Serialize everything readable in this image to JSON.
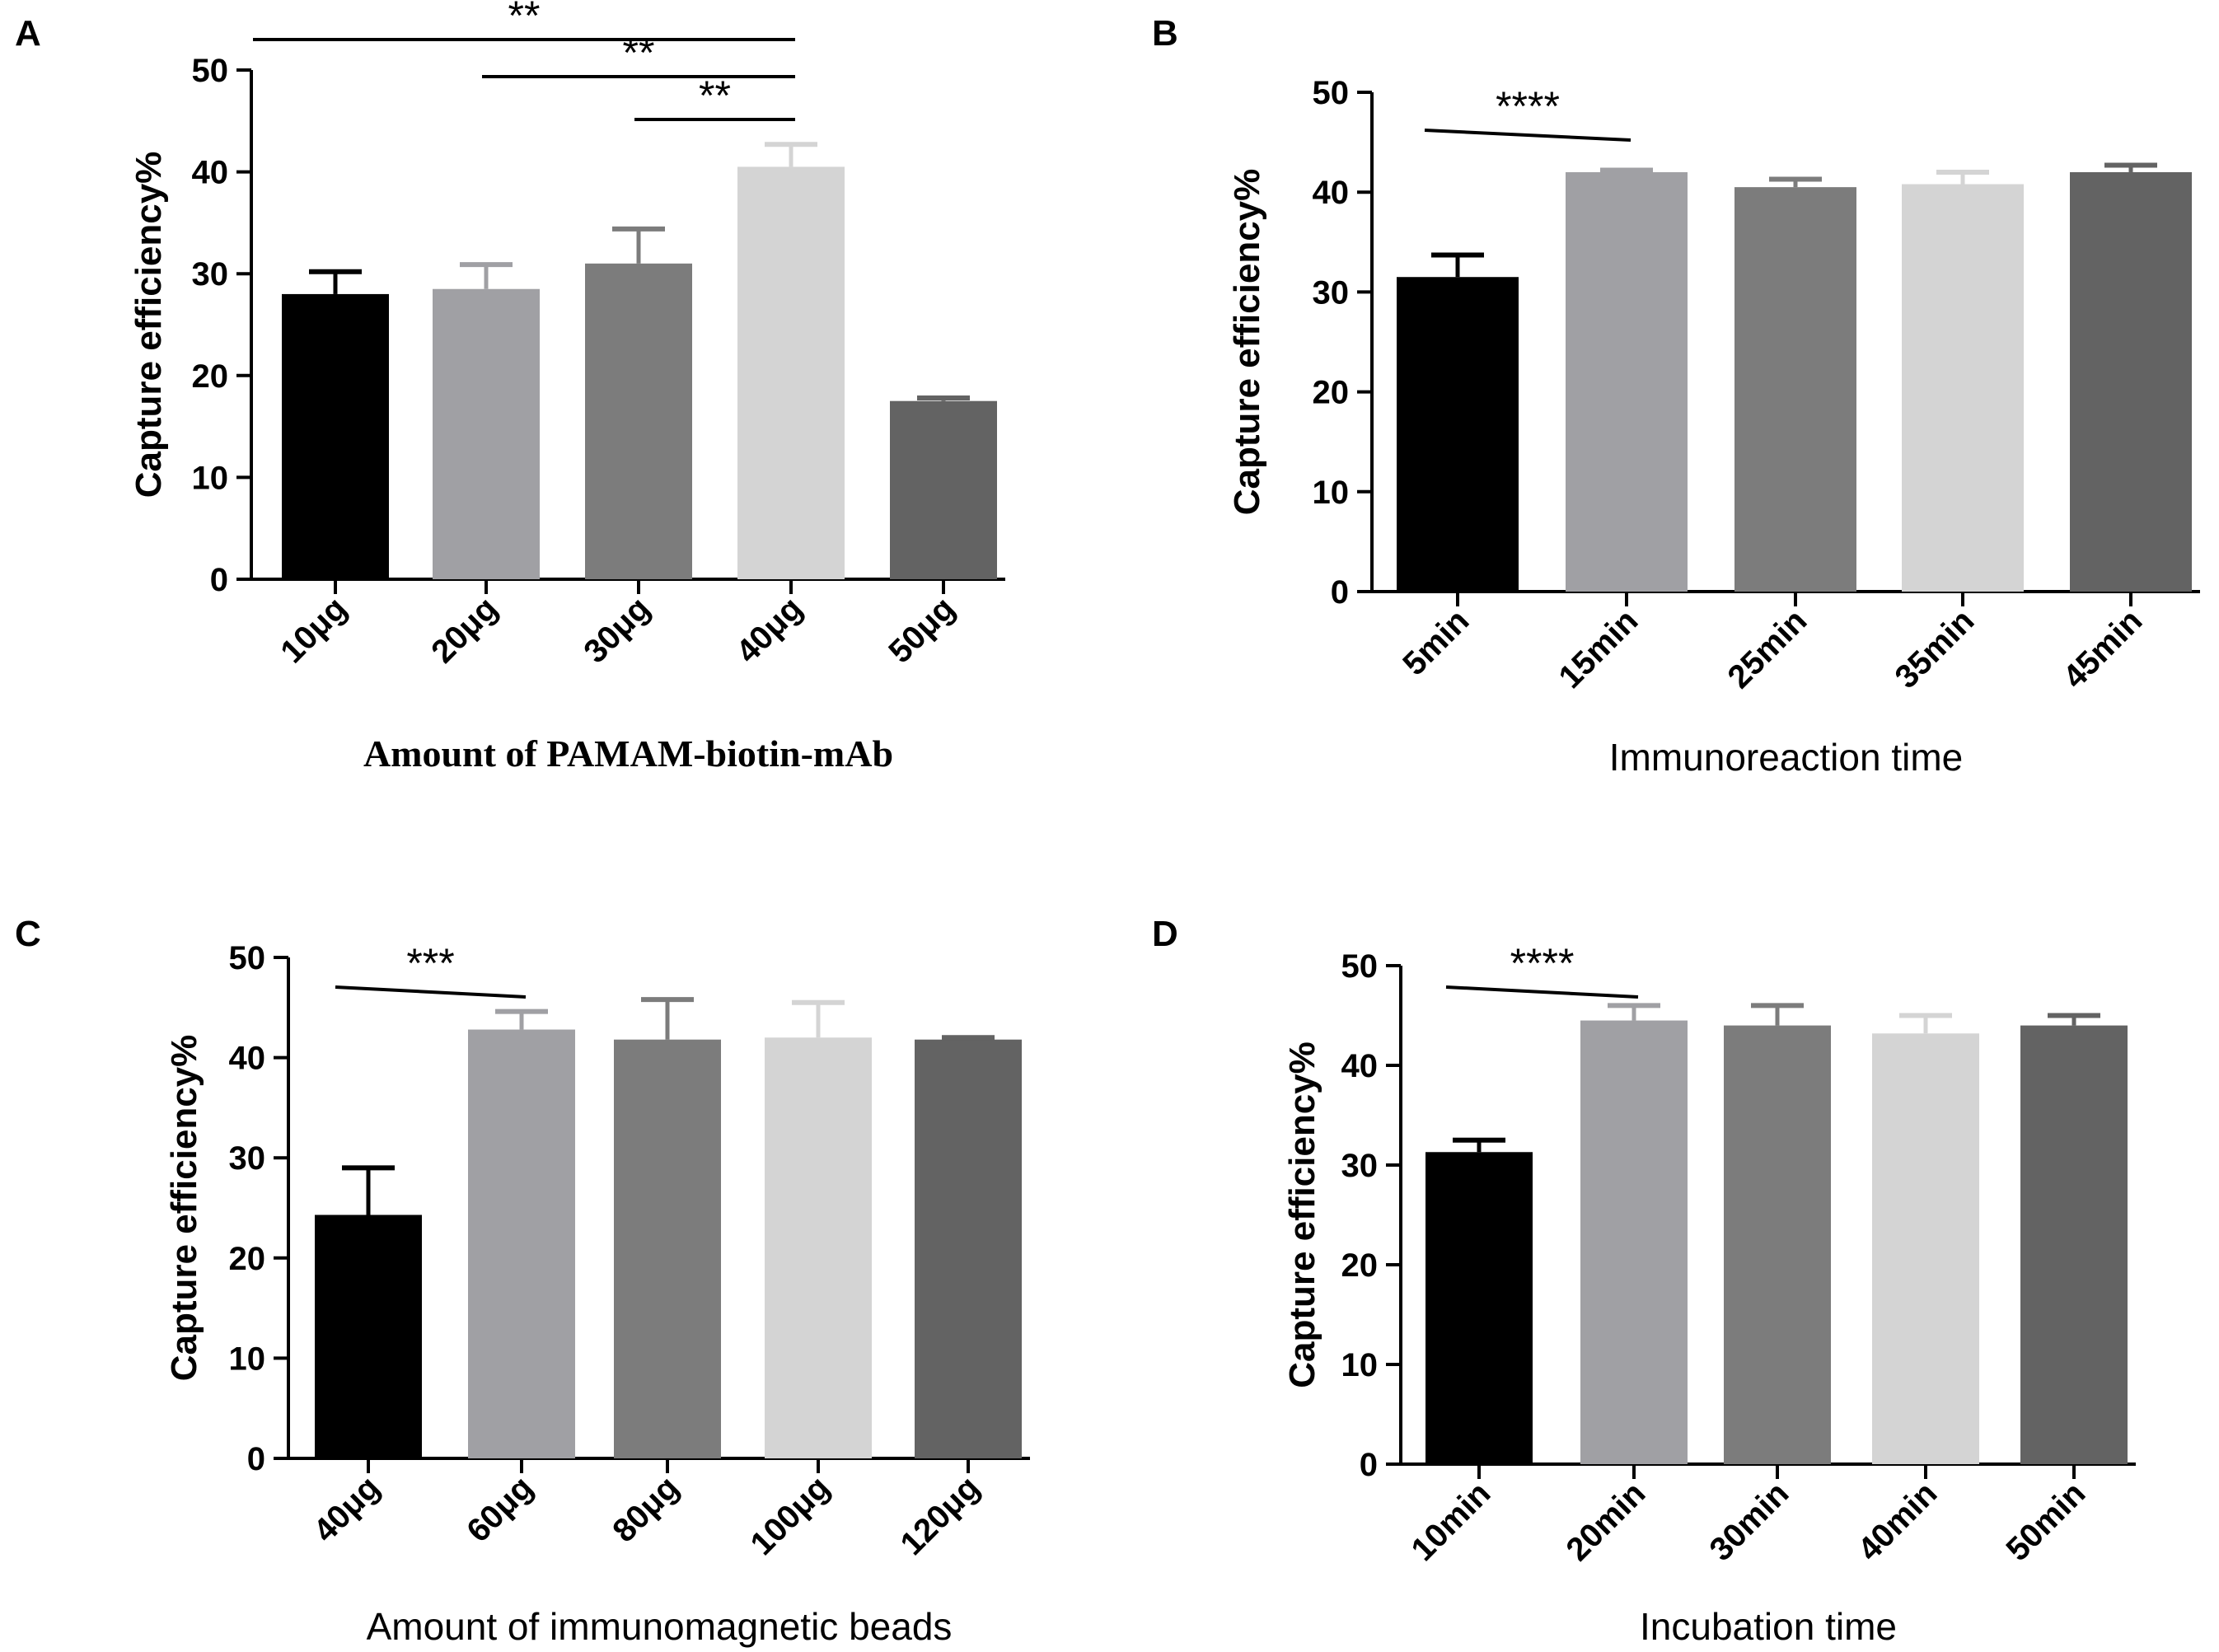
{
  "chart_data": [
    {
      "panel": "A",
      "type": "bar",
      "categories": [
        "10μg",
        "20μg",
        "30μg",
        "40μg",
        "50μg"
      ],
      "values": [
        28,
        28.5,
        31,
        40.5,
        17.5
      ],
      "errors": [
        2.2,
        2.4,
        3.4,
        2.2,
        0.3
      ],
      "colors": [
        "#000000",
        "#a0a0a4",
        "#7c7c7c",
        "#d4d4d4",
        "#636363"
      ],
      "xlabel": "Amount of PAMAM-biotin-mAb",
      "xlabel_style": "serif",
      "ylabel": "Capture efficiency%",
      "ylim": [
        0,
        50
      ],
      "yticks": [
        "0",
        "10",
        "20",
        "30",
        "40",
        "50"
      ],
      "significance": [
        {
          "from": 0,
          "to": 3,
          "label": "**"
        },
        {
          "from": 1,
          "to": 3,
          "label": "**"
        },
        {
          "from": 2,
          "to": 3,
          "label": "**"
        }
      ]
    },
    {
      "panel": "B",
      "type": "bar",
      "categories": [
        "5min",
        "15min",
        "25min",
        "35min",
        "45min"
      ],
      "values": [
        31.5,
        42,
        40.5,
        40.8,
        42
      ],
      "errors": [
        2.2,
        0.2,
        0.8,
        1.2,
        0.7
      ],
      "colors": [
        "#000000",
        "#a0a0a4",
        "#7c7c7c",
        "#d4d4d4",
        "#636363"
      ],
      "xlabel": "Immunoreaction time",
      "xlabel_style": "sans",
      "ylabel": "Capture efficiency%",
      "ylim": [
        0,
        50
      ],
      "yticks": [
        "0",
        "10",
        "20",
        "30",
        "40",
        "50"
      ],
      "significance": [
        {
          "from": 0,
          "to": 1,
          "label": "****"
        }
      ]
    },
    {
      "panel": "C",
      "type": "bar",
      "categories": [
        "40μg",
        "60μg",
        "80μg",
        "100μg",
        "120μg"
      ],
      "values": [
        24.3,
        42.8,
        41.8,
        42,
        41.8
      ],
      "errors": [
        4.7,
        1.8,
        4,
        3.5,
        0.2
      ],
      "colors": [
        "#000000",
        "#a0a0a4",
        "#7c7c7c",
        "#d4d4d4",
        "#636363"
      ],
      "xlabel": "Amount of immunomagnetic beads",
      "xlabel_style": "sans",
      "ylabel": "Capture efficiency%",
      "ylim": [
        0,
        50
      ],
      "yticks": [
        "0",
        "10",
        "20",
        "30",
        "40",
        "50"
      ],
      "significance": [
        {
          "from": 0,
          "to": 1,
          "label": "***"
        }
      ]
    },
    {
      "panel": "D",
      "type": "bar",
      "categories": [
        "10min",
        "20min",
        "30min",
        "40min",
        "50min"
      ],
      "values": [
        31.3,
        44.5,
        44,
        43.2,
        44
      ],
      "errors": [
        1.2,
        1.5,
        2,
        1.8,
        1
      ],
      "colors": [
        "#000000",
        "#a0a0a4",
        "#7c7c7c",
        "#d4d4d4",
        "#636363"
      ],
      "xlabel": "Incubation time",
      "xlabel_style": "sans",
      "ylabel": "Capture efficiency%",
      "ylim": [
        0,
        50
      ],
      "yticks": [
        "0",
        "10",
        "20",
        "30",
        "40",
        "50"
      ],
      "significance": [
        {
          "from": 0,
          "to": 1,
          "label": "****"
        }
      ]
    }
  ]
}
